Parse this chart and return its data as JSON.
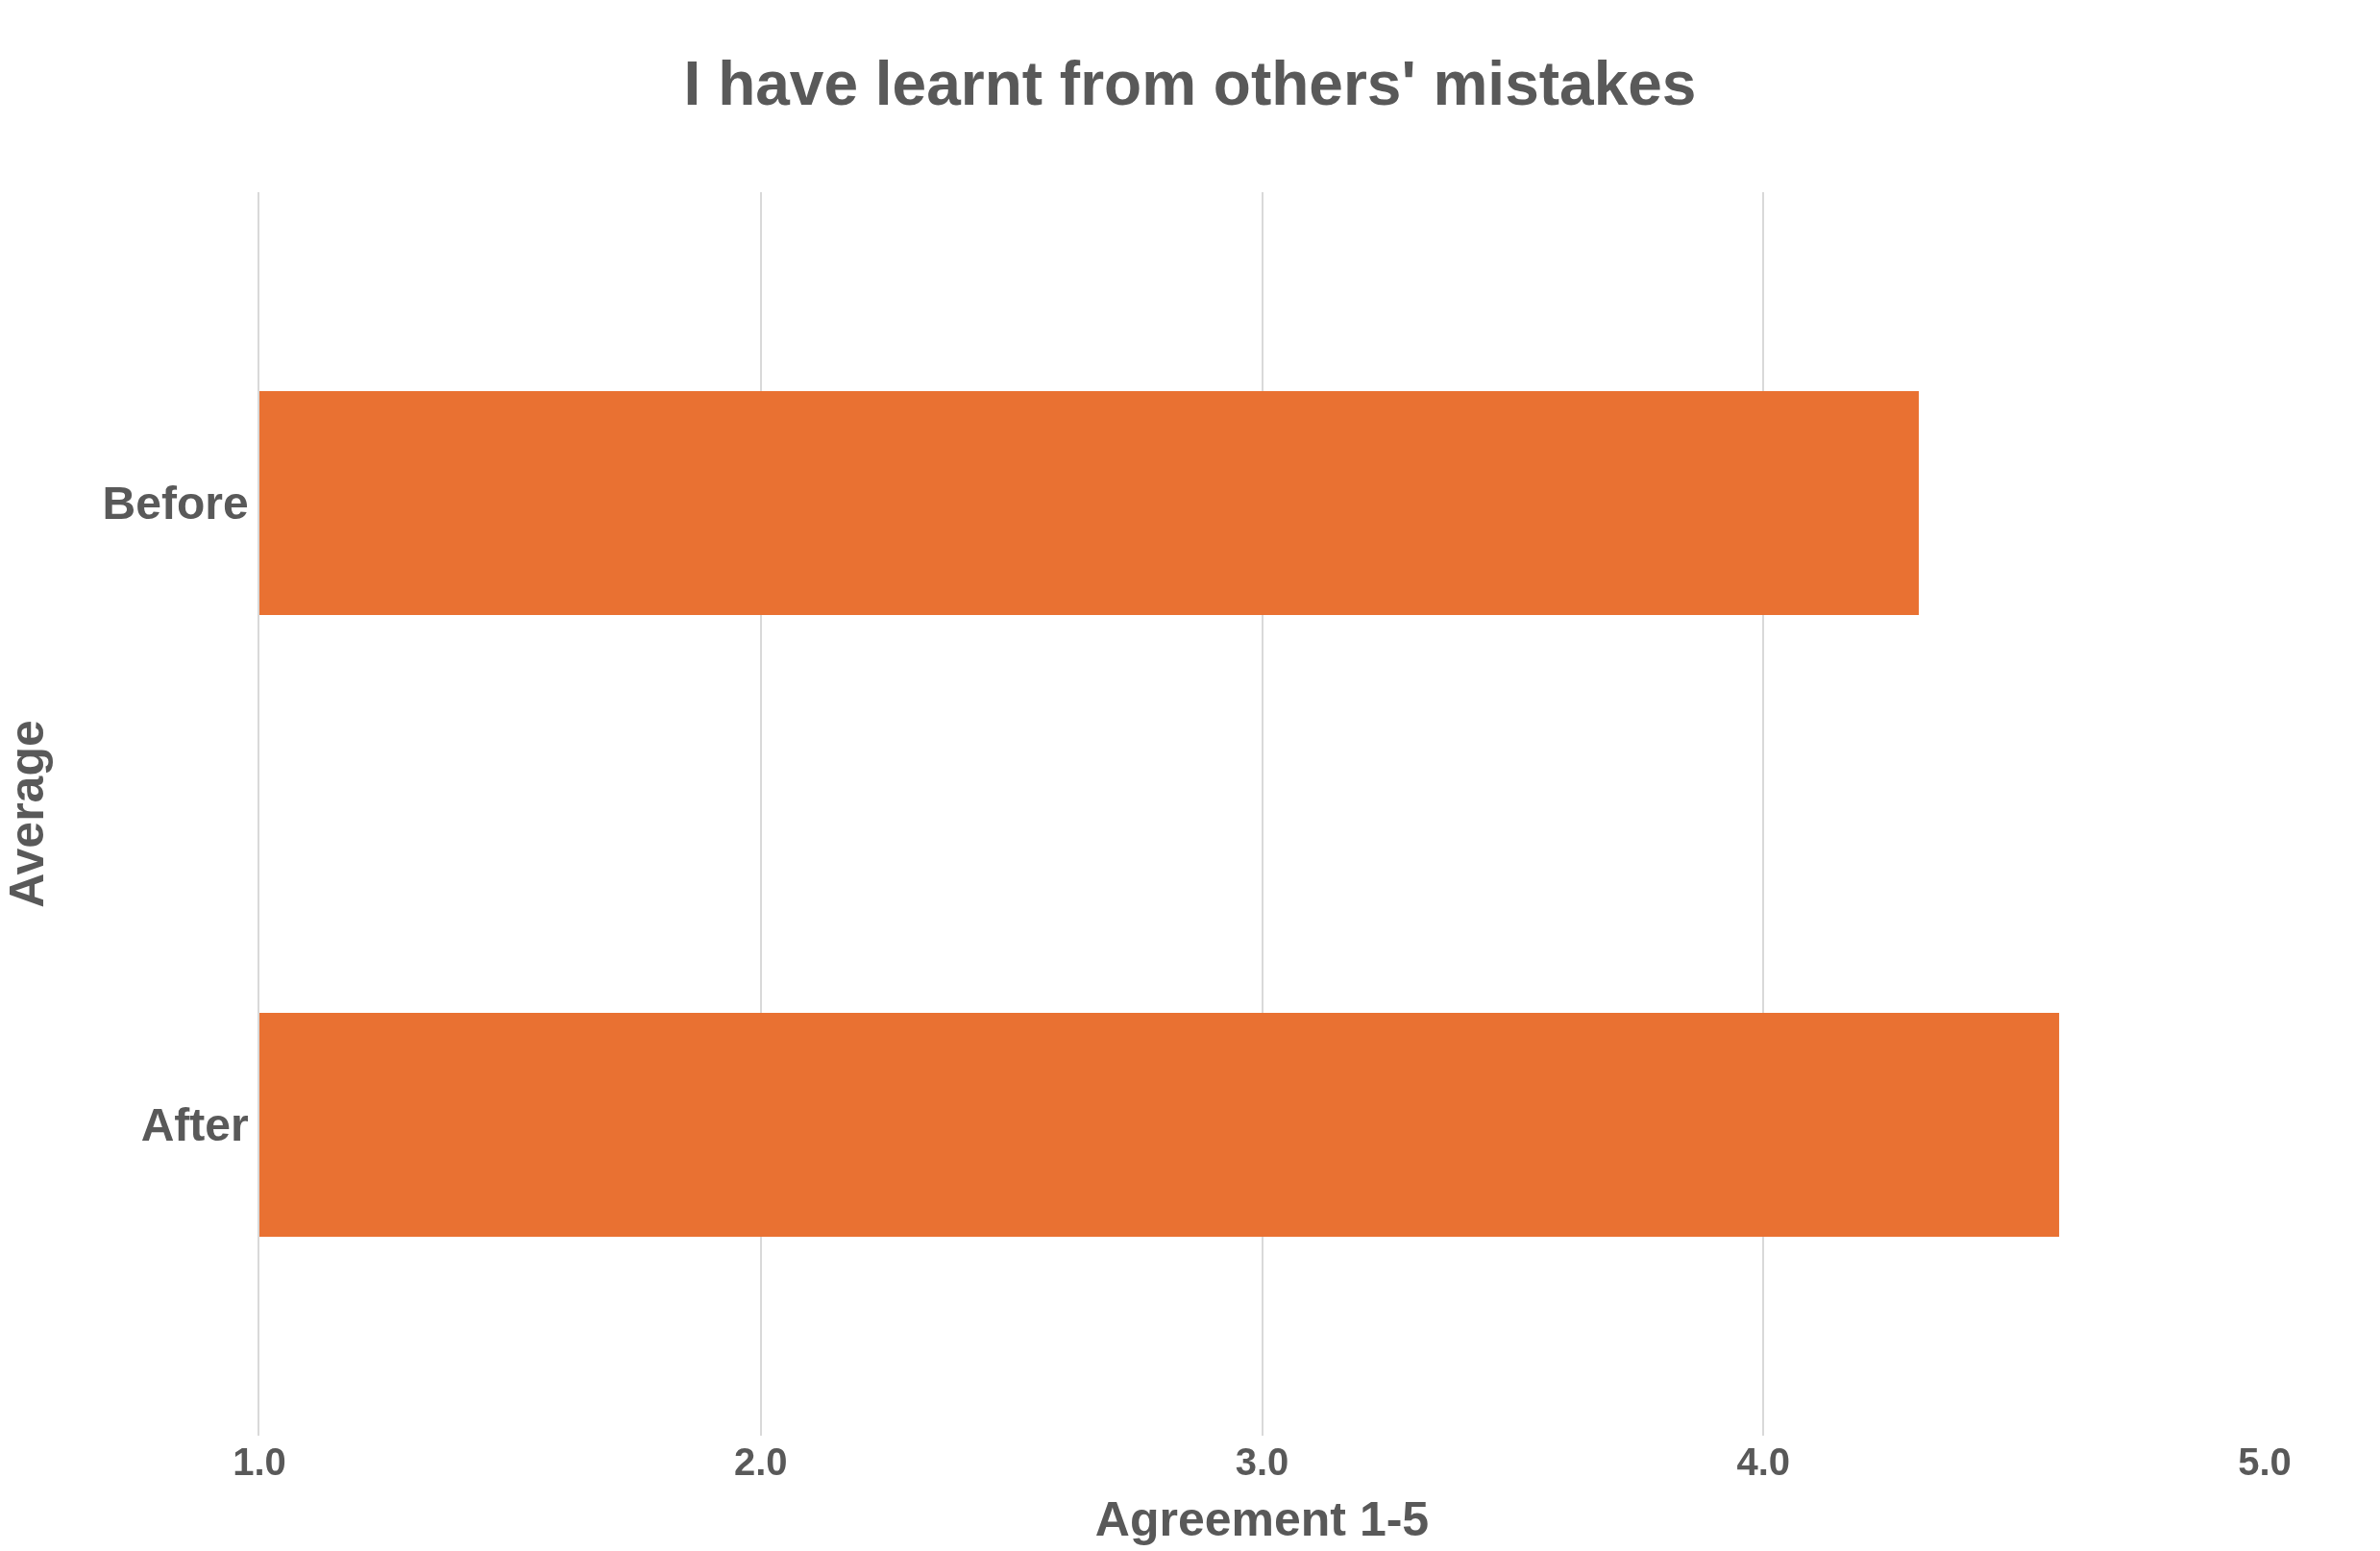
{
  "chart_data": {
    "type": "bar",
    "orientation": "horizontal",
    "title": "I have learnt from others' mistakes",
    "categories": [
      "Before",
      "After"
    ],
    "series": [
      {
        "color": "#e97132",
        "values": [
          4.31,
          4.59
        ]
      }
    ],
    "xlabel": "Agreement 1-5",
    "ylabel": "Average",
    "xlim": [
      1,
      5
    ],
    "xticks": [
      {
        "value": 1,
        "label": "1.0"
      },
      {
        "value": 2,
        "label": "2.0"
      },
      {
        "value": 3,
        "label": "3.0"
      },
      {
        "value": 4,
        "label": "4.0"
      },
      {
        "value": 5,
        "label": "5.0"
      }
    ],
    "grid": "x"
  }
}
